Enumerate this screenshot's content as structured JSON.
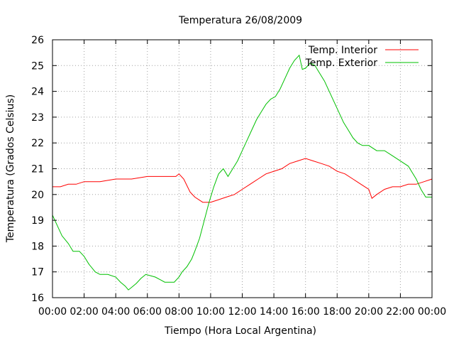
{
  "chart_data": {
    "type": "line",
    "title": "Temperatura 26/08/2009",
    "xlabel": "Tiempo (Hora Local Argentina)",
    "ylabel": "Temperatura (Grados Celsius)",
    "xlim": [
      0,
      24
    ],
    "ylim": [
      16,
      26
    ],
    "grid": true,
    "legend_position": "top-right",
    "x_ticks": [
      {
        "v": 0,
        "label": "00:00"
      },
      {
        "v": 2,
        "label": "02:00"
      },
      {
        "v": 4,
        "label": "04:00"
      },
      {
        "v": 6,
        "label": "06:00"
      },
      {
        "v": 8,
        "label": "08:00"
      },
      {
        "v": 10,
        "label": "10:00"
      },
      {
        "v": 12,
        "label": "12:00"
      },
      {
        "v": 14,
        "label": "14:00"
      },
      {
        "v": 16,
        "label": "16:00"
      },
      {
        "v": 18,
        "label": "18:00"
      },
      {
        "v": 20,
        "label": "20:00"
      },
      {
        "v": 22,
        "label": "22:00"
      },
      {
        "v": 24,
        "label": "00:00"
      }
    ],
    "y_ticks": [
      {
        "v": 16,
        "label": "16"
      },
      {
        "v": 17,
        "label": "17"
      },
      {
        "v": 18,
        "label": "18"
      },
      {
        "v": 19,
        "label": "19"
      },
      {
        "v": 20,
        "label": "20"
      },
      {
        "v": 21,
        "label": "21"
      },
      {
        "v": 22,
        "label": "22"
      },
      {
        "v": 23,
        "label": "23"
      },
      {
        "v": 24,
        "label": "24"
      },
      {
        "v": 25,
        "label": "25"
      },
      {
        "v": 26,
        "label": "26"
      }
    ],
    "series": [
      {
        "name": "Temp. Interior",
        "color": "#ff0000",
        "x": [
          0,
          0.5,
          1.0,
          1.5,
          2.0,
          3.0,
          4.0,
          5.0,
          6.0,
          7.0,
          7.5,
          7.8,
          8.0,
          8.3,
          8.7,
          9.0,
          9.5,
          10.0,
          10.5,
          11.0,
          11.5,
          12.0,
          12.5,
          13.0,
          13.5,
          14.0,
          14.5,
          15.0,
          15.5,
          16.0,
          16.5,
          17.0,
          17.5,
          18.0,
          18.5,
          19.0,
          19.5,
          20.0,
          20.2,
          20.5,
          21.0,
          21.5,
          22.0,
          22.5,
          23.0,
          23.5,
          24.0
        ],
        "y": [
          20.3,
          20.3,
          20.4,
          20.4,
          20.5,
          20.5,
          20.6,
          20.6,
          20.7,
          20.7,
          20.7,
          20.7,
          20.8,
          20.6,
          20.1,
          19.9,
          19.7,
          19.7,
          19.8,
          19.9,
          20.0,
          20.2,
          20.4,
          20.6,
          20.8,
          20.9,
          21.0,
          21.2,
          21.3,
          21.4,
          21.3,
          21.2,
          21.1,
          20.9,
          20.8,
          20.6,
          20.4,
          20.2,
          19.85,
          20.0,
          20.2,
          20.3,
          20.3,
          20.4,
          20.4,
          20.5,
          20.6
        ]
      },
      {
        "name": "Temp. Exterior",
        "color": "#00c000",
        "x": [
          0,
          0.3,
          0.6,
          1.0,
          1.3,
          1.7,
          2.0,
          2.3,
          2.7,
          3.0,
          3.5,
          4.0,
          4.3,
          4.6,
          4.8,
          5.0,
          5.3,
          5.6,
          5.9,
          6.2,
          6.5,
          6.8,
          7.1,
          7.4,
          7.7,
          8.0,
          8.2,
          8.5,
          8.8,
          9.0,
          9.3,
          9.6,
          9.9,
          10.2,
          10.5,
          10.8,
          11.1,
          11.4,
          11.7,
          12.0,
          12.3,
          12.6,
          12.9,
          13.2,
          13.5,
          13.8,
          14.1,
          14.4,
          14.7,
          15.0,
          15.3,
          15.6,
          15.8,
          16.0,
          16.3,
          16.6,
          16.9,
          17.2,
          17.5,
          17.8,
          18.1,
          18.4,
          18.7,
          19.0,
          19.3,
          19.6,
          20.0,
          20.5,
          21.0,
          21.5,
          22.0,
          22.5,
          23.0,
          23.3,
          23.6,
          24.0
        ],
        "y": [
          19.2,
          18.8,
          18.4,
          18.1,
          17.8,
          17.8,
          17.6,
          17.3,
          17.0,
          16.9,
          16.9,
          16.8,
          16.6,
          16.45,
          16.3,
          16.4,
          16.55,
          16.75,
          16.9,
          16.85,
          16.8,
          16.7,
          16.6,
          16.6,
          16.6,
          16.8,
          17.0,
          17.2,
          17.5,
          17.8,
          18.3,
          19.0,
          19.7,
          20.3,
          20.8,
          21.0,
          20.7,
          21.0,
          21.3,
          21.7,
          22.1,
          22.5,
          22.9,
          23.2,
          23.5,
          23.7,
          23.8,
          24.1,
          24.5,
          24.9,
          25.2,
          25.4,
          24.85,
          24.9,
          25.1,
          25.0,
          24.7,
          24.4,
          24.0,
          23.6,
          23.2,
          22.8,
          22.5,
          22.2,
          22.0,
          21.9,
          21.9,
          21.7,
          21.7,
          21.5,
          21.3,
          21.1,
          20.6,
          20.2,
          19.9,
          19.9
        ]
      }
    ]
  }
}
